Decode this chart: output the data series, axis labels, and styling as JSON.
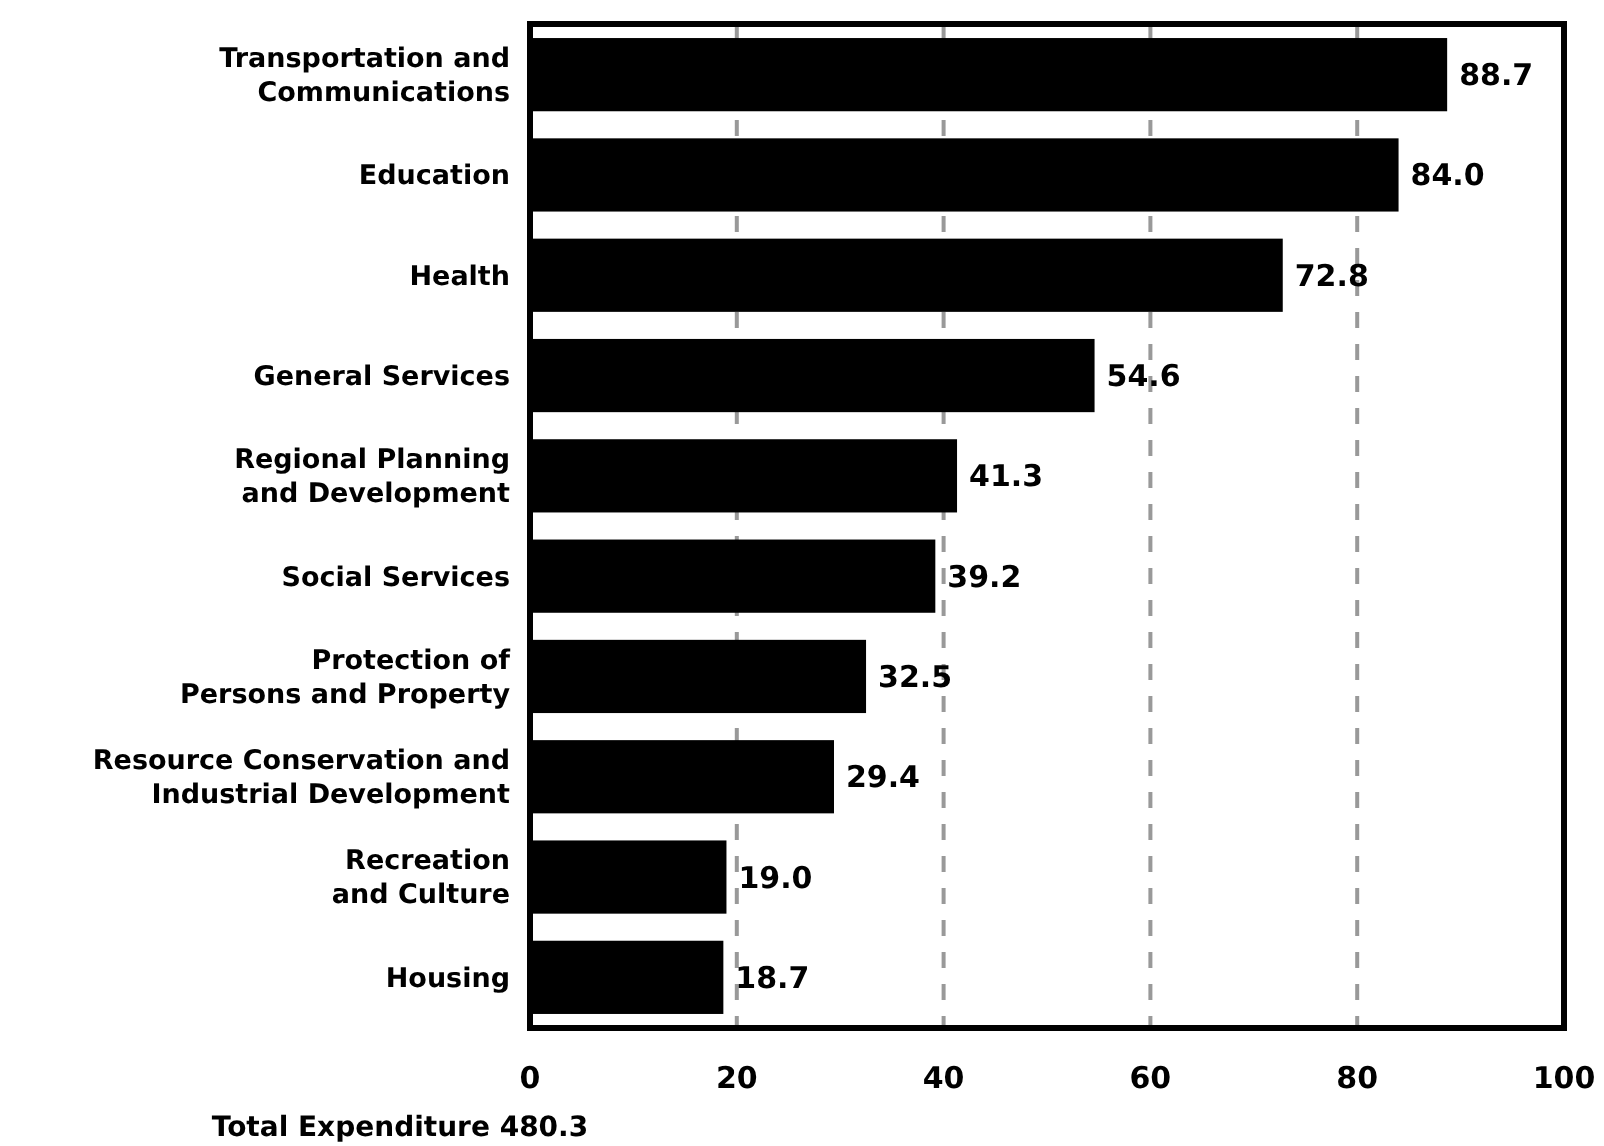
{
  "chart_data": {
    "type": "bar",
    "orientation": "horizontal",
    "xlabel": "Total Expenditure 480.3",
    "categories": [
      "Transportation and\nCommunications",
      "Education",
      "Health",
      "General Services",
      "Regional Planning\nand Development",
      "Social Services",
      "Protection of\nPersons and Property",
      "Resource Conservation and\nIndustrial Development",
      "Recreation\nand Culture",
      "Housing"
    ],
    "values": [
      88.7,
      84.0,
      72.8,
      54.6,
      41.3,
      39.2,
      32.5,
      29.4,
      19.0,
      18.7
    ],
    "color": "#000000",
    "xlim": [
      0,
      100
    ],
    "xticks": [
      0,
      20,
      40,
      60,
      80,
      100
    ],
    "grid": "x",
    "value_labels": [
      "88.7",
      "84.0",
      "72.8",
      "54.6",
      "41.3",
      "39.2",
      "32.5",
      "29.4",
      "19.0",
      "18.7"
    ]
  }
}
